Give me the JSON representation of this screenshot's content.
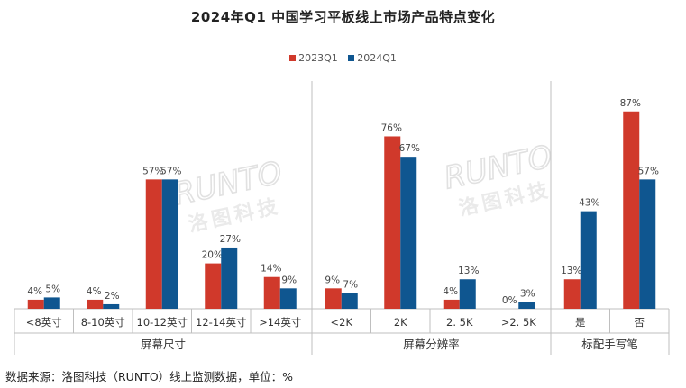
{
  "title": "2024年Q1 中国学习平板线上市场产品特点变化",
  "source_note": "数据来源：洛图科技（RUNTO）线上监测数据，单位：%",
  "watermark": {
    "brand": "RUNTO",
    "name": "洛图科技"
  },
  "colors": {
    "series_2023": "#d0392b",
    "series_2024": "#0f5690",
    "axis": "#bfbfbf"
  },
  "chart_data": {
    "type": "bar",
    "legend_position": "top-center",
    "grid": false,
    "value_unit": "%",
    "ylim": [
      0,
      100
    ],
    "series_names": [
      "2023Q1",
      "2024Q1"
    ],
    "groups": [
      {
        "label": "屏幕尺寸",
        "categories": [
          "<8英寸",
          "8-10英寸",
          "10-12英寸",
          "12-14英寸",
          ">14英寸"
        ],
        "series": [
          {
            "name": "2023Q1",
            "values": [
              4,
              4,
              57,
              20,
              14
            ],
            "labels": [
              "4%",
              "4%",
              "57%",
              "20%",
              "14%"
            ]
          },
          {
            "name": "2024Q1",
            "values": [
              5,
              2,
              57,
              27,
              9
            ],
            "labels": [
              "5%",
              "2%",
              "57%",
              "27%",
              "9%"
            ]
          }
        ]
      },
      {
        "label": "屏幕分辨率",
        "categories": [
          "<2K",
          "2K",
          "2. 5K",
          ">2. 5K"
        ],
        "series": [
          {
            "name": "2023Q1",
            "values": [
              9,
              76,
              4,
              0
            ],
            "labels": [
              "9%",
              "76%",
              "4%",
              "0%"
            ]
          },
          {
            "name": "2024Q1",
            "values": [
              7,
              67,
              13,
              3
            ],
            "labels": [
              "7%",
              "67%",
              "13%",
              "3%"
            ]
          }
        ]
      },
      {
        "label": "标配手写笔",
        "categories": [
          "是",
          "否"
        ],
        "series": [
          {
            "name": "2023Q1",
            "values": [
              13,
              87
            ],
            "labels": [
              "13%",
              "87%"
            ]
          },
          {
            "name": "2024Q1",
            "values": [
              43,
              57
            ],
            "labels": [
              "43%",
              "57%"
            ]
          }
        ]
      }
    ]
  }
}
